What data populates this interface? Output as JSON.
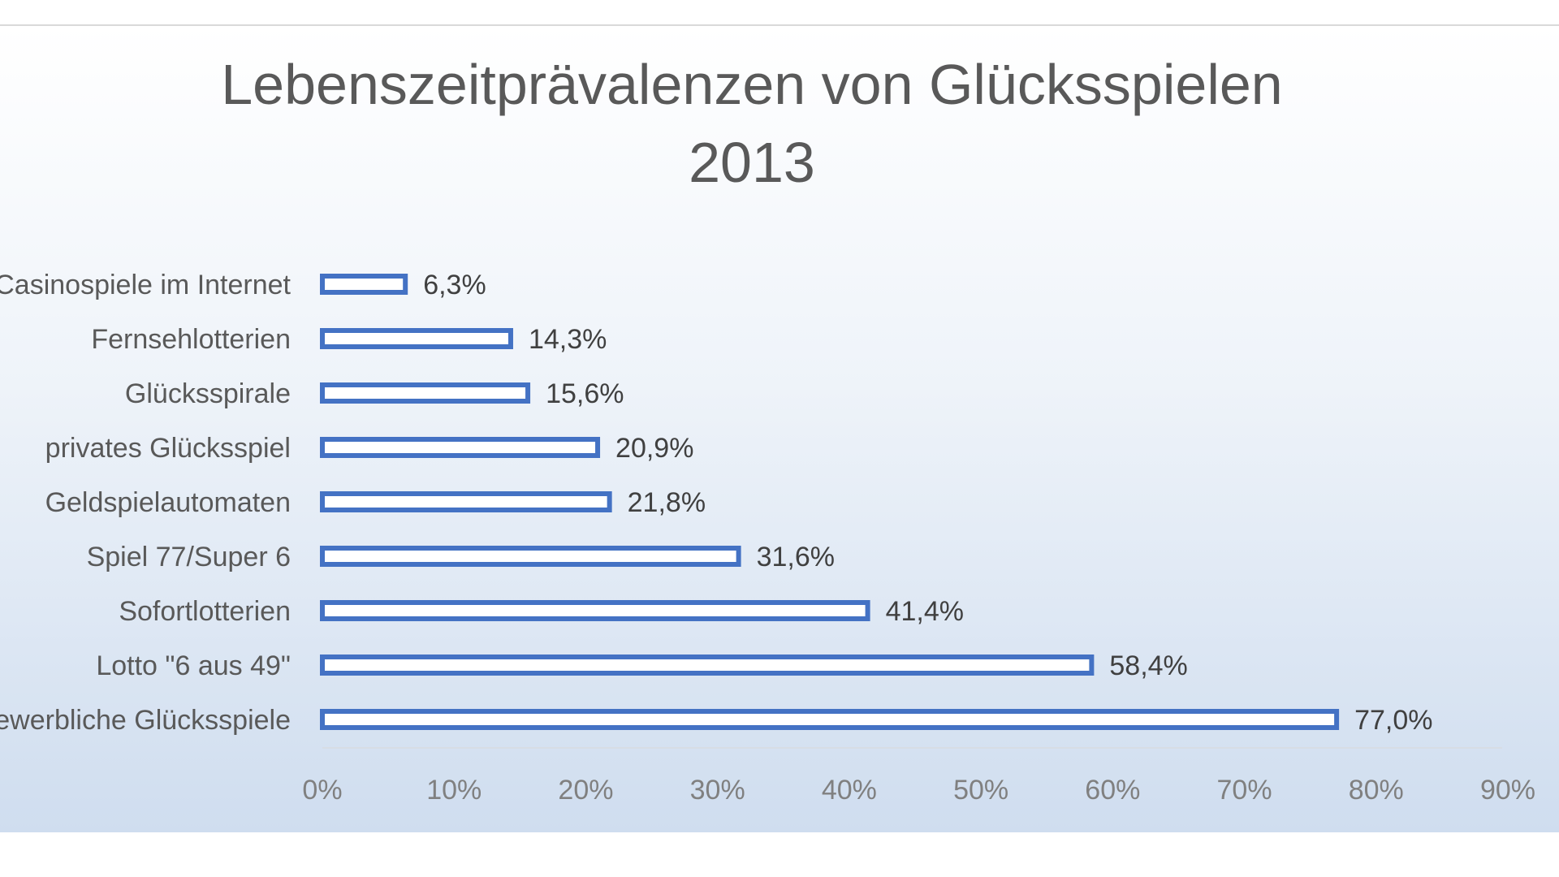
{
  "chart_data": {
    "type": "bar",
    "orientation": "horizontal",
    "title": [
      "Lebenszeitprävalenzen von Glücksspielen",
      "2013"
    ],
    "categories": [
      "Casinospiele im Internet",
      "Fernsehlotterien",
      "Glücksspirale",
      "privates Glücksspiel",
      "Geldspielautomaten",
      "Spiel 77/Super 6",
      "Sofortlotterien",
      "Lotto \"6 aus 49\"",
      "gewerbliche Glücksspiele"
    ],
    "values": [
      6.3,
      14.3,
      15.6,
      20.9,
      21.8,
      31.6,
      41.4,
      58.4,
      77.0
    ],
    "value_labels": [
      "6,3%",
      "14,3%",
      "15,6%",
      "20,9%",
      "21,8%",
      "31,6%",
      "41,4%",
      "58,4%",
      "77,0%"
    ],
    "xlim": [
      0,
      90
    ],
    "xticks": [
      0,
      10,
      20,
      30,
      40,
      50,
      60,
      70,
      80,
      90
    ],
    "xtick_labels": [
      "0%",
      "10%",
      "20%",
      "30%",
      "40%",
      "50%",
      "60%",
      "70%",
      "80%",
      "90%"
    ],
    "xlabel": "",
    "ylabel": "",
    "grid": false,
    "legend": "none",
    "colors": {
      "bar_outline": "#4472c4",
      "bar_fill": "#ffffff"
    }
  }
}
